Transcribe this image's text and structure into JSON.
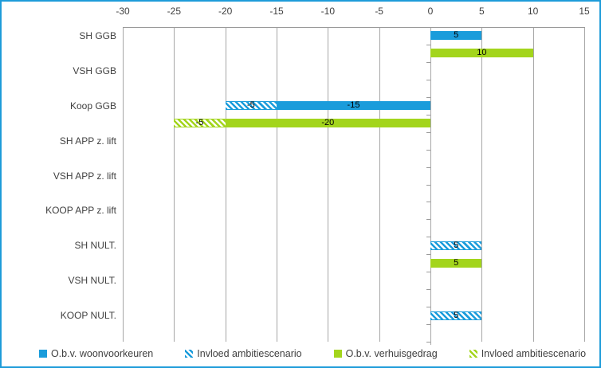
{
  "chart": {
    "background": "#FFFFFF",
    "border_color": "#1E9CD9"
  },
  "chart_data": {
    "type": "bar",
    "orientation": "horizontal",
    "title": "",
    "categories": [
      "SH GGB",
      "VSH GGB",
      "Koop GGB",
      "SH APP z. lift",
      "VSH APP z. lift",
      "KOOP APP z. lift",
      "SH NULT.",
      "VSH NULT.",
      "KOOP NULT."
    ],
    "series": [
      {
        "name": "O.b.v. woonvoorkeuren",
        "slot": "blue",
        "pattern": "solid",
        "color": "#1A9CDB",
        "values": [
          5,
          null,
          -15,
          null,
          null,
          null,
          null,
          null,
          null
        ]
      },
      {
        "name": "Invloed ambitiescenario",
        "slot": "blue",
        "pattern": "hatched",
        "color": "#1A9CDB",
        "values": [
          null,
          null,
          -5,
          null,
          null,
          null,
          5,
          null,
          5
        ]
      },
      {
        "name": "O.b.v. verhuisgedrag",
        "slot": "green",
        "pattern": "solid",
        "color": "#A3D51C",
        "values": [
          10,
          null,
          -20,
          null,
          null,
          null,
          5,
          null,
          null
        ]
      },
      {
        "name": "Invloed ambitiescenario",
        "slot": "green",
        "pattern": "hatched",
        "color": "#A3D51C",
        "values": [
          null,
          null,
          -5,
          null,
          null,
          null,
          null,
          null,
          null
        ]
      }
    ],
    "x_axis": {
      "min": -30,
      "max": 15,
      "step": 5,
      "tick_labels": [
        "-30",
        "-25",
        "-20",
        "-15",
        "-10",
        "-5",
        "0",
        "5",
        "10",
        "15"
      ],
      "position": "top"
    },
    "grid": true,
    "gridline_color": "#A6A6A6",
    "axis_text_color": "#3f3f3f",
    "data_label_color": "#000000",
    "legend_position": "bottom"
  }
}
